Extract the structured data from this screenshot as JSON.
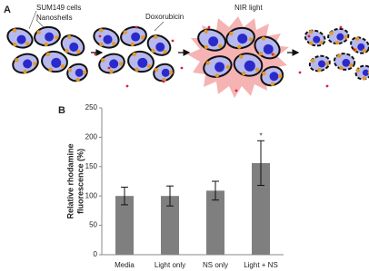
{
  "panel_a": {
    "label": "A",
    "cells_label": "SUM149 cells",
    "nanoshells_label": "Nanoshells",
    "drug_label": "Doxorubicin",
    "light_label": "NIR light"
  },
  "chart_data": {
    "type": "bar",
    "panel_label": "B",
    "ylabel": [
      "Relative rhodamine",
      "fluorescence (%)"
    ],
    "categories": [
      "Media",
      "Light only",
      "NS only",
      "Light + NS"
    ],
    "values": [
      100,
      100,
      109,
      156
    ],
    "errors": [
      15,
      17,
      16,
      38
    ],
    "color": "#7f7f7f",
    "ylim": [
      0,
      250
    ],
    "yticks": [
      0,
      50,
      100,
      150,
      200,
      250
    ],
    "annotation": "*",
    "annotation_index": 3
  }
}
